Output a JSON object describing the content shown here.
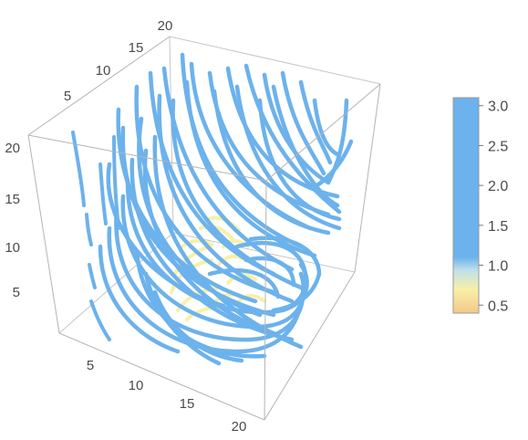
{
  "chart_data": {
    "type": "stream-plot-3d",
    "title": "",
    "x_axis": {
      "label": "",
      "range": [
        0,
        20
      ],
      "ticks": [
        "5",
        "10",
        "15",
        "20"
      ]
    },
    "y_axis": {
      "label": "",
      "range": [
        0,
        20
      ],
      "ticks": [
        "5",
        "10",
        "15",
        "20"
      ]
    },
    "z_axis": {
      "label": "",
      "range": [
        0,
        20
      ],
      "ticks": [
        "5",
        "10",
        "15",
        "20"
      ]
    },
    "colorbar": {
      "range": [
        0.4,
        3.1
      ],
      "ticks": [
        "0.5",
        "1.0",
        "1.5",
        "2.0",
        "2.5",
        "3.0"
      ],
      "tick_values": [
        0.5,
        1.0,
        1.5,
        2.0,
        2.5,
        3.0
      ],
      "gradient": [
        {
          "value": 0.4,
          "color": "#f2c98a"
        },
        {
          "value": 0.7,
          "color": "#f8f0a6"
        },
        {
          "value": 0.95,
          "color": "#bfe0ea"
        },
        {
          "value": 1.1,
          "color": "#6cb2ec"
        },
        {
          "value": 3.1,
          "color": "#6cb2ec"
        }
      ]
    },
    "colors": {
      "stream_high": "#6cb2ec",
      "stream_low": "#f8f0a6",
      "box": "#b4b4b4"
    }
  }
}
